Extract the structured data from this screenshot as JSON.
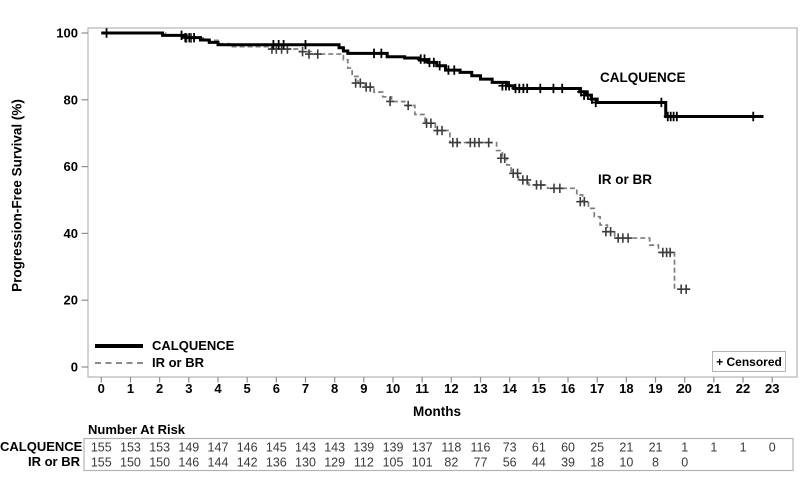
{
  "figure": {
    "censored_note": "+ Censored",
    "y_axis": {
      "title": "Progression-Free Survival (%)",
      "ticks": [
        0,
        20,
        40,
        60,
        80,
        100
      ]
    },
    "x_axis": {
      "title": "Months",
      "ticks": [
        0,
        1,
        2,
        3,
        4,
        5,
        6,
        7,
        8,
        9,
        10,
        11,
        12,
        13,
        14,
        15,
        16,
        17,
        18,
        19,
        20,
        21,
        22,
        23
      ]
    },
    "colors": {
      "frame": "#b3b3b3",
      "tick": "#8c8c8c",
      "text": "#000000",
      "risk_value": "#3a3a3a",
      "solid_series": "#000000",
      "dashed_series": "#7d7d7d"
    }
  },
  "chart_data": {
    "type": "line",
    "subtype": "kaplan-meier-step",
    "title": "",
    "xlabel": "Months",
    "ylabel": "Progression-Free Survival (%)",
    "xlim": [
      0,
      23
    ],
    "ylim": [
      0,
      100
    ],
    "grid": false,
    "legend_position": "inside-bottom-left",
    "series": [
      {
        "name": "CALQUENCE",
        "line_style": "solid",
        "color": "#000000",
        "line_width": 3,
        "censor_color": "#000000",
        "censor_stroke": 1.8,
        "steps": [
          [
            0,
            100
          ],
          [
            2.1,
            99.3
          ],
          [
            2.9,
            98.6
          ],
          [
            3.4,
            97.9
          ],
          [
            3.7,
            97.2
          ],
          [
            4.0,
            96.5
          ],
          [
            8.15,
            95.6
          ],
          [
            8.3,
            94.6
          ],
          [
            8.45,
            93.9
          ],
          [
            9.8,
            92.9
          ],
          [
            10.4,
            92.5
          ],
          [
            10.9,
            91.9
          ],
          [
            11.2,
            91.2
          ],
          [
            11.5,
            90.2
          ],
          [
            11.8,
            88.9
          ],
          [
            12.3,
            88.2
          ],
          [
            12.7,
            87.2
          ],
          [
            13.0,
            86.2
          ],
          [
            13.4,
            85.2
          ],
          [
            13.9,
            84.2
          ],
          [
            14.15,
            83.4
          ],
          [
            16.4,
            82.4
          ],
          [
            16.6,
            81.4
          ],
          [
            16.8,
            80.2
          ],
          [
            17.0,
            79.2
          ],
          [
            19.35,
            75.0
          ]
        ],
        "end_x": 22.7,
        "censors": [
          [
            0.18,
            100
          ],
          [
            2.75,
            99.3
          ],
          [
            2.88,
            98.6
          ],
          [
            3.02,
            98.6
          ],
          [
            3.18,
            98.6
          ],
          [
            5.9,
            96.5
          ],
          [
            6.08,
            96.5
          ],
          [
            6.25,
            96.5
          ],
          [
            7.0,
            96.5
          ],
          [
            9.35,
            93.9
          ],
          [
            9.6,
            93.9
          ],
          [
            10.95,
            92.2
          ],
          [
            11.08,
            92.2
          ],
          [
            11.25,
            91.2
          ],
          [
            11.4,
            91.2
          ],
          [
            11.6,
            90.2
          ],
          [
            11.9,
            88.9
          ],
          [
            12.1,
            88.9
          ],
          [
            13.75,
            84.2
          ],
          [
            13.87,
            84.2
          ],
          [
            13.98,
            84.2
          ],
          [
            14.2,
            83.4
          ],
          [
            14.33,
            83.4
          ],
          [
            14.47,
            83.4
          ],
          [
            14.6,
            83.4
          ],
          [
            15.05,
            83.4
          ],
          [
            15.5,
            83.4
          ],
          [
            15.8,
            83.4
          ],
          [
            16.45,
            82.4
          ],
          [
            16.55,
            81.4
          ],
          [
            16.68,
            81.4
          ],
          [
            16.82,
            80.2
          ],
          [
            16.95,
            79.2
          ],
          [
            19.2,
            79.2
          ],
          [
            19.42,
            75
          ],
          [
            19.52,
            75
          ],
          [
            19.62,
            75
          ],
          [
            19.73,
            75
          ],
          [
            22.35,
            75
          ]
        ]
      },
      {
        "name": "IR or BR",
        "line_style": "dashed",
        "color": "#7d7d7d",
        "line_width": 1.7,
        "censor_color": "#3c3c3c",
        "censor_stroke": 1.6,
        "steps": [
          [
            0,
            100
          ],
          [
            2.2,
            99.3
          ],
          [
            3.0,
            98.5
          ],
          [
            3.5,
            97.8
          ],
          [
            4.0,
            96.8
          ],
          [
            4.4,
            95.9
          ],
          [
            5.8,
            95.2
          ],
          [
            6.8,
            94.4
          ],
          [
            7.2,
            93.7
          ],
          [
            8.3,
            92.0
          ],
          [
            8.45,
            89.5
          ],
          [
            8.6,
            87.0
          ],
          [
            8.8,
            85.0
          ],
          [
            9.05,
            83.8
          ],
          [
            9.35,
            82.3
          ],
          [
            9.65,
            80.9
          ],
          [
            9.95,
            79.5
          ],
          [
            10.4,
            78.3
          ],
          [
            10.75,
            75.6
          ],
          [
            11.1,
            73.0
          ],
          [
            11.45,
            70.8
          ],
          [
            11.95,
            67.2
          ],
          [
            13.55,
            64.8
          ],
          [
            13.75,
            62.5
          ],
          [
            13.9,
            60.5
          ],
          [
            14.05,
            58.0
          ],
          [
            14.3,
            56.0
          ],
          [
            14.65,
            54.5
          ],
          [
            15.3,
            53.5
          ],
          [
            16.3,
            51.5
          ],
          [
            16.5,
            49.5
          ],
          [
            16.7,
            47.5
          ],
          [
            16.9,
            45.0
          ],
          [
            17.1,
            42.5
          ],
          [
            17.35,
            40.5
          ],
          [
            17.6,
            38.6
          ],
          [
            18.8,
            36.5
          ],
          [
            19.1,
            34.3
          ],
          [
            19.65,
            23.3
          ]
        ],
        "end_x": 20.2,
        "censors": [
          [
            2.92,
            98.5
          ],
          [
            3.08,
            98.5
          ],
          [
            5.85,
            95.2
          ],
          [
            6.0,
            95.2
          ],
          [
            6.18,
            95.2
          ],
          [
            6.38,
            95.2
          ],
          [
            6.9,
            94.4
          ],
          [
            7.12,
            93.7
          ],
          [
            7.42,
            93.7
          ],
          [
            8.72,
            85.0
          ],
          [
            8.88,
            85.0
          ],
          [
            9.08,
            83.8
          ],
          [
            9.22,
            83.8
          ],
          [
            9.9,
            79.5
          ],
          [
            10.52,
            78.3
          ],
          [
            11.15,
            73.0
          ],
          [
            11.3,
            73.0
          ],
          [
            11.52,
            70.8
          ],
          [
            11.68,
            70.8
          ],
          [
            12.05,
            67.2
          ],
          [
            12.2,
            67.2
          ],
          [
            12.65,
            67.2
          ],
          [
            12.8,
            67.2
          ],
          [
            12.95,
            67.2
          ],
          [
            13.28,
            67.2
          ],
          [
            13.7,
            62.5
          ],
          [
            13.83,
            62.5
          ],
          [
            14.12,
            58.0
          ],
          [
            14.27,
            58.0
          ],
          [
            14.45,
            56.0
          ],
          [
            14.6,
            56.0
          ],
          [
            14.92,
            54.5
          ],
          [
            15.07,
            54.5
          ],
          [
            15.52,
            53.5
          ],
          [
            15.72,
            53.5
          ],
          [
            16.42,
            49.5
          ],
          [
            16.56,
            49.5
          ],
          [
            17.3,
            40.5
          ],
          [
            17.46,
            40.5
          ],
          [
            17.72,
            38.6
          ],
          [
            17.88,
            38.6
          ],
          [
            18.06,
            38.6
          ],
          [
            19.25,
            34.3
          ],
          [
            19.38,
            34.3
          ],
          [
            19.5,
            34.3
          ],
          [
            19.88,
            23.3
          ],
          [
            20.05,
            23.3
          ]
        ]
      }
    ]
  },
  "risk_table": {
    "header": "Number At Risk",
    "months": [
      0,
      1,
      2,
      3,
      4,
      5,
      6,
      7,
      8,
      9,
      10,
      11,
      12,
      13,
      14,
      15,
      16,
      17,
      18,
      19,
      20,
      21,
      22,
      23
    ],
    "rows": [
      {
        "label": "CALQUENCE",
        "values": [
          155,
          153,
          153,
          149,
          147,
          146,
          145,
          143,
          143,
          139,
          139,
          137,
          118,
          116,
          73,
          61,
          60,
          25,
          21,
          21,
          1,
          1,
          1,
          0
        ]
      },
      {
        "label": "IR or BR",
        "values": [
          155,
          150,
          150,
          146,
          144,
          142,
          136,
          130,
          129,
          112,
          105,
          101,
          82,
          77,
          56,
          44,
          39,
          18,
          10,
          8,
          0
        ]
      }
    ]
  }
}
